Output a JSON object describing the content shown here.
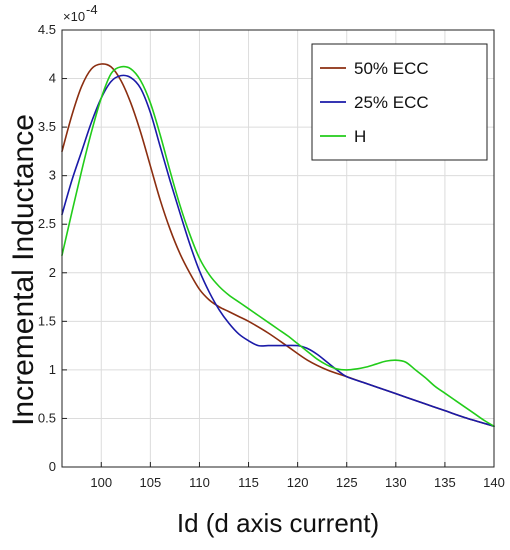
{
  "chart_data": {
    "type": "line",
    "title": "",
    "xlabel": "Id (d axis current)",
    "ylabel": "Incremental Inductance",
    "y_exponent_label": "×10",
    "y_exponent_power": "-4",
    "xlim": [
      96,
      140
    ],
    "ylim": [
      0,
      4.5
    ],
    "x_ticks": [
      100,
      105,
      110,
      115,
      120,
      125,
      130,
      135,
      140
    ],
    "y_ticks": [
      0,
      0.5,
      1,
      1.5,
      2,
      2.5,
      3,
      3.5,
      4,
      4.5
    ],
    "x_tick_labels": [
      "100",
      "105",
      "110",
      "115",
      "120",
      "125",
      "130",
      "135",
      "140"
    ],
    "y_tick_labels": [
      "0",
      "0.5",
      "1",
      "1.5",
      "2",
      "2.5",
      "3",
      "3.5",
      "4",
      "4.5"
    ],
    "grid": true,
    "legend_position": "top-right",
    "series": [
      {
        "name": "50% ECC",
        "color": "#8b2e10",
        "x": [
          96,
          97,
          98,
          99,
          100,
          101,
          102,
          103,
          104,
          105,
          106,
          107,
          108,
          109,
          110,
          111,
          112,
          113,
          114,
          115,
          117,
          119,
          121,
          123,
          125,
          127,
          129,
          131,
          133,
          135,
          137,
          140
        ],
        "y": [
          3.25,
          3.62,
          3.92,
          4.1,
          4.15,
          4.12,
          3.98,
          3.75,
          3.45,
          3.1,
          2.75,
          2.45,
          2.2,
          2.0,
          1.83,
          1.72,
          1.65,
          1.6,
          1.55,
          1.5,
          1.38,
          1.24,
          1.1,
          1.0,
          0.93,
          0.86,
          0.79,
          0.72,
          0.65,
          0.58,
          0.51,
          0.42
        ]
      },
      {
        "name": "25% ECC",
        "color": "#1a1aa8",
        "x": [
          96,
          97,
          98,
          99,
          100,
          101,
          102,
          103,
          104,
          105,
          106,
          107,
          108,
          109,
          110,
          111,
          112,
          113,
          114,
          115,
          116,
          117,
          118,
          120,
          121,
          122,
          123,
          124,
          125,
          127,
          129,
          131,
          133,
          135,
          137,
          140
        ],
        "y": [
          2.6,
          2.95,
          3.25,
          3.55,
          3.8,
          3.97,
          4.03,
          4.01,
          3.9,
          3.65,
          3.3,
          2.95,
          2.62,
          2.3,
          2.02,
          1.8,
          1.62,
          1.48,
          1.37,
          1.3,
          1.25,
          1.25,
          1.25,
          1.25,
          1.22,
          1.16,
          1.08,
          1.0,
          0.93,
          0.86,
          0.79,
          0.72,
          0.65,
          0.58,
          0.51,
          0.42
        ]
      },
      {
        "name": "H",
        "color": "#22cc1a",
        "x": [
          96,
          97,
          98,
          99,
          100,
          101,
          102,
          103,
          104,
          105,
          106,
          107,
          108,
          109,
          110,
          111,
          112,
          113,
          114,
          115,
          116,
          117,
          118,
          119,
          120,
          121,
          122,
          123,
          124,
          125,
          126,
          127,
          128,
          129,
          130,
          131,
          132,
          133,
          134,
          135,
          136,
          137,
          138,
          139,
          140
        ],
        "y": [
          2.18,
          2.62,
          3.05,
          3.45,
          3.8,
          4.05,
          4.12,
          4.1,
          3.98,
          3.75,
          3.42,
          3.05,
          2.7,
          2.4,
          2.15,
          1.98,
          1.86,
          1.77,
          1.7,
          1.63,
          1.56,
          1.49,
          1.42,
          1.35,
          1.27,
          1.19,
          1.11,
          1.05,
          1.01,
          1.0,
          1.01,
          1.03,
          1.06,
          1.09,
          1.1,
          1.08,
          1.0,
          0.92,
          0.83,
          0.76,
          0.69,
          0.62,
          0.55,
          0.48,
          0.42
        ]
      }
    ]
  }
}
